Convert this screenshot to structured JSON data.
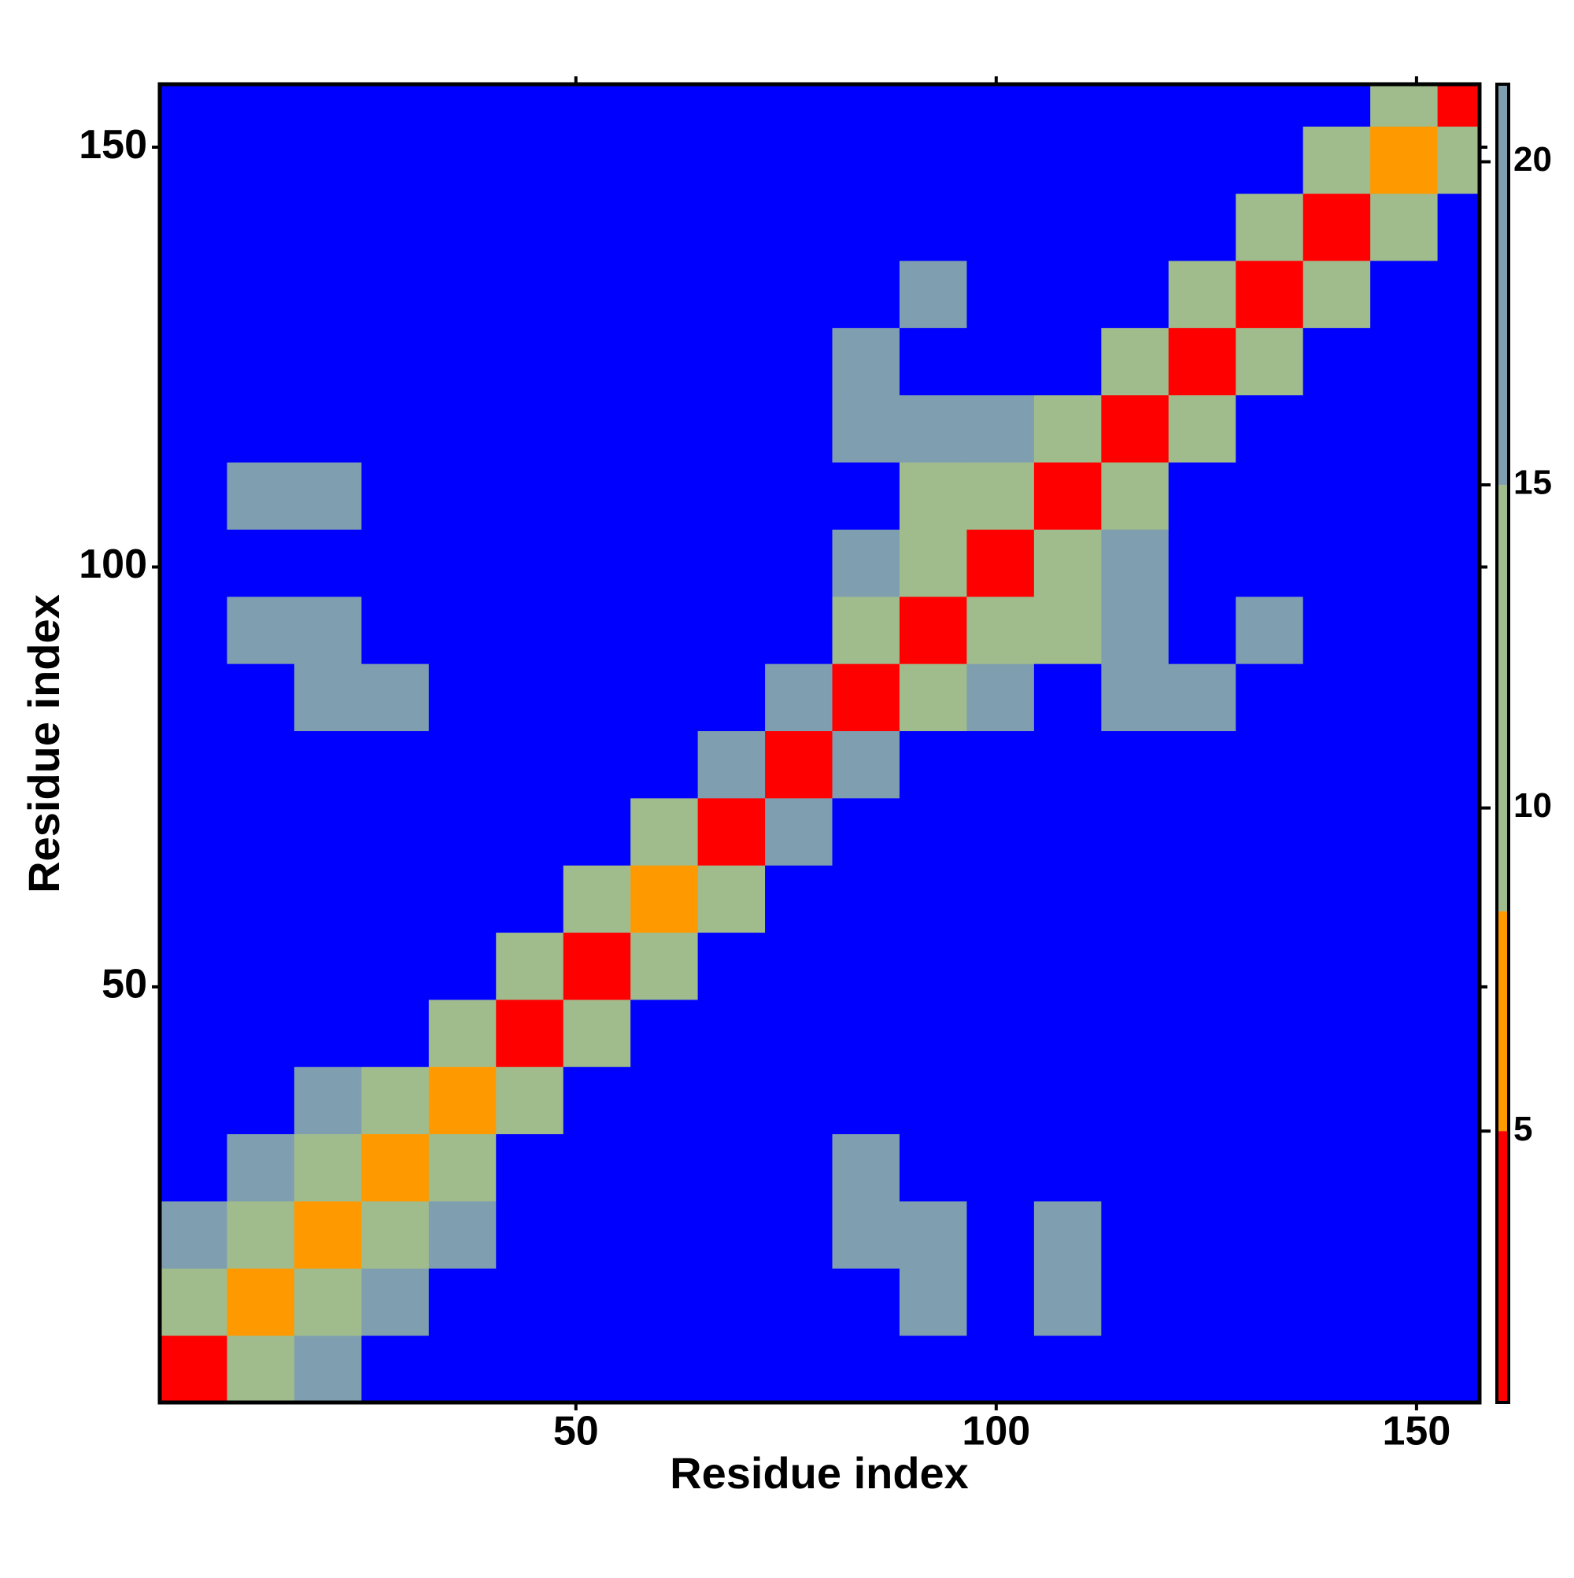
{
  "chart_data": {
    "type": "heatmap",
    "xlabel": "Residue index",
    "ylabel": "Residue index",
    "xbins": [
      0.5,
      8.5,
      16.5,
      24.5,
      32.5,
      40.5,
      48.5,
      56.5,
      64.5,
      72.5,
      80.5,
      88.5,
      96.5,
      104.5,
      112.5,
      120.5,
      128.5,
      136.5,
      144.5,
      152.5,
      157.5
    ],
    "ybins": [
      0.5,
      8.5,
      16.5,
      24.5,
      32.5,
      40.5,
      48.5,
      56.5,
      64.5,
      72.5,
      80.5,
      88.5,
      96.5,
      104.5,
      112.5,
      120.5,
      128.5,
      136.5,
      144.5,
      152.5,
      157.5
    ],
    "xlim": [
      0.5,
      157.5
    ],
    "ylim": [
      0.5,
      157.5
    ],
    "xticks": [
      50,
      100,
      150
    ],
    "yticks": [
      50,
      100,
      150
    ],
    "values": [
      [
        3,
        12,
        16,
        22,
        22,
        22,
        22,
        22,
        22,
        22,
        22,
        22,
        22,
        22,
        22,
        22,
        22,
        22,
        22,
        22
      ],
      [
        12,
        6,
        12,
        17,
        22,
        22,
        22,
        22,
        22,
        22,
        22,
        17,
        22,
        18,
        22,
        22,
        22,
        22,
        22,
        22
      ],
      [
        16,
        12,
        6,
        11,
        18,
        22,
        22,
        22,
        22,
        22,
        16,
        17,
        22,
        18,
        22,
        22,
        22,
        22,
        22,
        22
      ],
      [
        22,
        17,
        11,
        6,
        13,
        22,
        22,
        22,
        22,
        22,
        17,
        22,
        22,
        22,
        22,
        22,
        22,
        22,
        22,
        22
      ],
      [
        22,
        22,
        18,
        13,
        6,
        14,
        22,
        22,
        22,
        22,
        22,
        22,
        22,
        22,
        22,
        22,
        22,
        22,
        22,
        22
      ],
      [
        22,
        22,
        22,
        22,
        14,
        3,
        15,
        22,
        22,
        22,
        22,
        22,
        22,
        22,
        22,
        22,
        22,
        22,
        22,
        22
      ],
      [
        22,
        22,
        22,
        22,
        22,
        15,
        3,
        15,
        22,
        22,
        22,
        22,
        22,
        22,
        22,
        22,
        22,
        22,
        22,
        22
      ],
      [
        22,
        22,
        22,
        22,
        22,
        22,
        15,
        6,
        14,
        22,
        22,
        22,
        22,
        22,
        22,
        22,
        22,
        22,
        22,
        22
      ],
      [
        22,
        22,
        22,
        22,
        22,
        22,
        22,
        14,
        3,
        16,
        22,
        22,
        22,
        22,
        22,
        22,
        22,
        22,
        22,
        22
      ],
      [
        22,
        22,
        22,
        22,
        22,
        22,
        22,
        22,
        16,
        3,
        16,
        22,
        22,
        22,
        22,
        22,
        22,
        22,
        22,
        22
      ],
      [
        22,
        22,
        16,
        17,
        22,
        22,
        22,
        22,
        22,
        16,
        3,
        15,
        17,
        22,
        17,
        17,
        22,
        22,
        22,
        22
      ],
      [
        22,
        17,
        17,
        22,
        22,
        22,
        22,
        22,
        22,
        22,
        15,
        3,
        12,
        15,
        16,
        22,
        17,
        22,
        22,
        22
      ],
      [
        22,
        22,
        22,
        22,
        22,
        22,
        22,
        22,
        22,
        22,
        17,
        12,
        3,
        13,
        17,
        22,
        22,
        22,
        22,
        22
      ],
      [
        22,
        18,
        18,
        22,
        22,
        22,
        22,
        22,
        22,
        22,
        22,
        15,
        13,
        3,
        15,
        22,
        22,
        22,
        22,
        22
      ],
      [
        22,
        22,
        22,
        22,
        22,
        22,
        22,
        22,
        22,
        22,
        17,
        16,
        17,
        15,
        3,
        14,
        22,
        22,
        22,
        22
      ],
      [
        22,
        22,
        22,
        22,
        22,
        22,
        22,
        22,
        22,
        22,
        17,
        22,
        22,
        22,
        14,
        3,
        13,
        22,
        22,
        22
      ],
      [
        22,
        22,
        22,
        22,
        22,
        22,
        22,
        22,
        22,
        22,
        22,
        17,
        22,
        22,
        22,
        13,
        3,
        14,
        22,
        22
      ],
      [
        22,
        22,
        22,
        22,
        22,
        22,
        22,
        22,
        22,
        22,
        22,
        22,
        22,
        22,
        22,
        22,
        14,
        3,
        13,
        22
      ],
      [
        22,
        22,
        22,
        22,
        22,
        22,
        22,
        22,
        22,
        22,
        22,
        22,
        22,
        22,
        22,
        22,
        22,
        13,
        6,
        12
      ],
      [
        22,
        22,
        22,
        22,
        22,
        22,
        22,
        22,
        22,
        22,
        22,
        22,
        22,
        22,
        22,
        22,
        22,
        22,
        12,
        3
      ]
    ],
    "zlim": [
      0.8,
      21.2
    ],
    "zticks": [
      5,
      10,
      15,
      20
    ],
    "levels": [
      {
        "max": 5,
        "color": "#ff0000"
      },
      {
        "max": 8.4,
        "color": "#ff9900"
      },
      {
        "max": 15,
        "color": "#a0bc8c"
      },
      {
        "max": 21.2,
        "color": "#7f9fb0"
      }
    ],
    "over_color": "#0000ff"
  }
}
